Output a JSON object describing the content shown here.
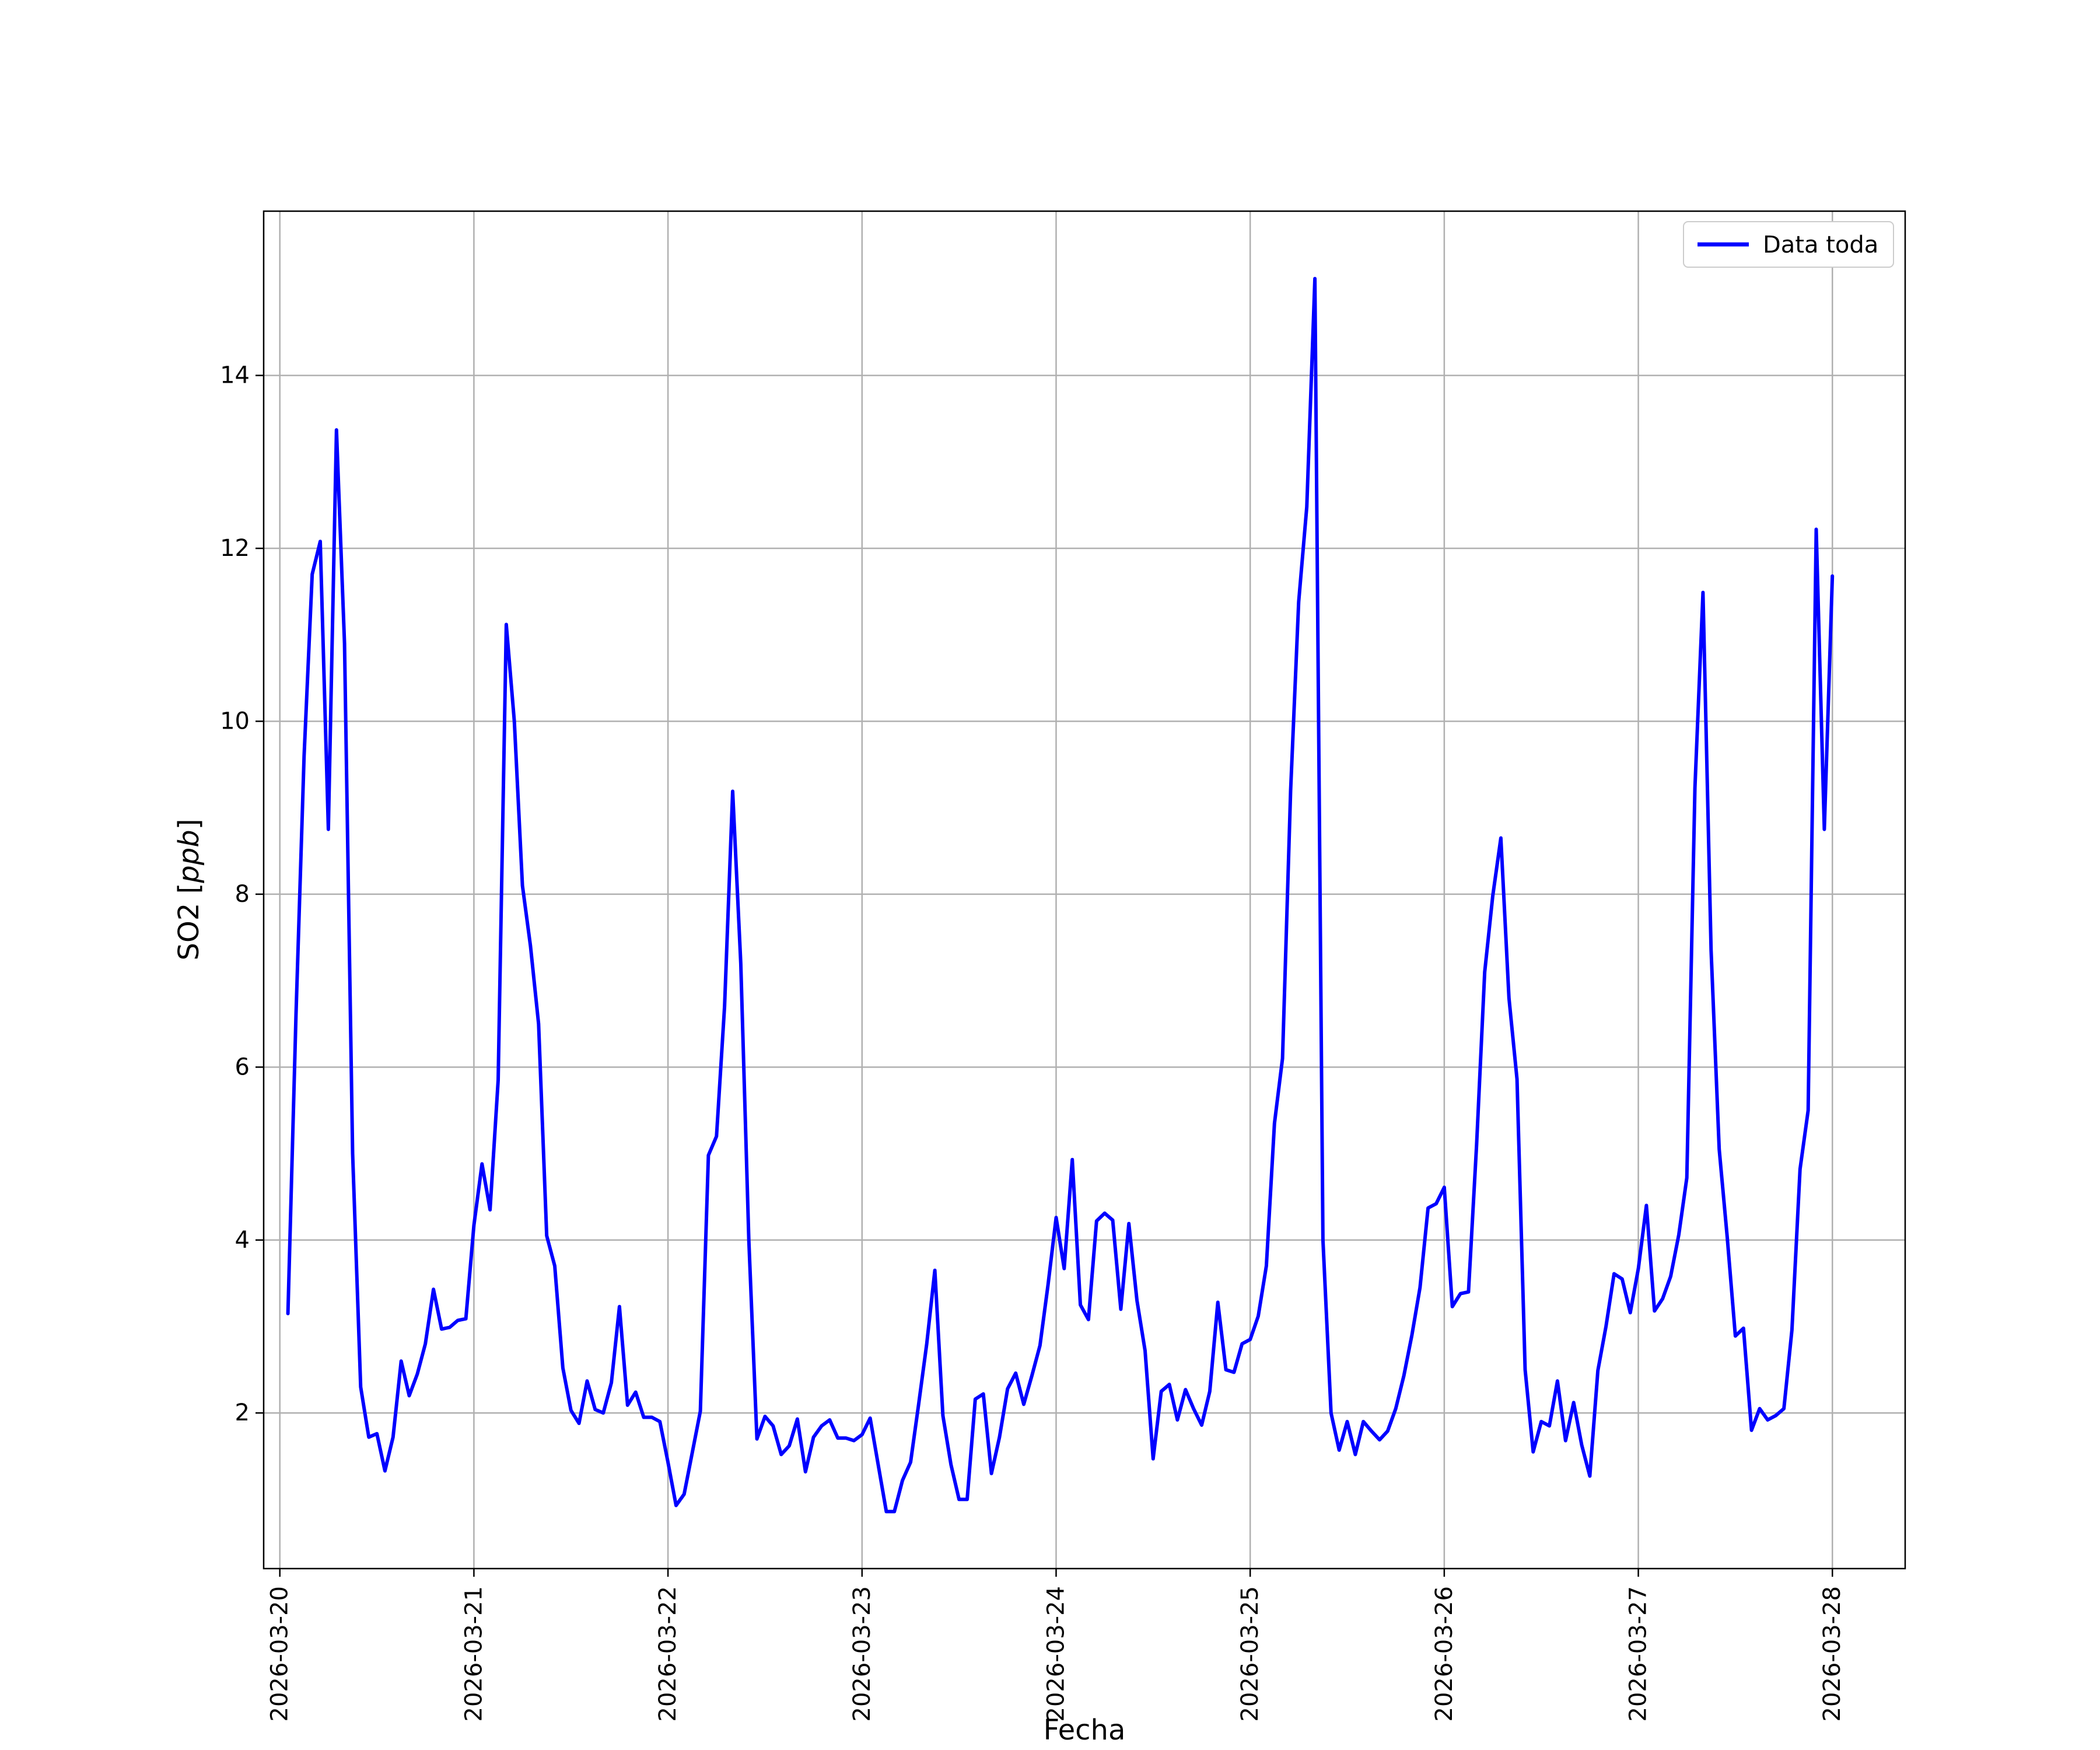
{
  "chart_data": {
    "type": "line",
    "xlabel": "Fecha",
    "ylabel_prefix": "SO2 [",
    "ylabel_unit": "ppb",
    "ylabel_suffix": "]",
    "x_range": [
      "2026-03-19 22:00",
      "2026-03-28 09:00"
    ],
    "ylim": [
      0.2,
      15.9
    ],
    "x_ticks": [
      "2026-03-20",
      "2026-03-21",
      "2026-03-22",
      "2026-03-23",
      "2026-03-24",
      "2026-03-25",
      "2026-03-26",
      "2026-03-27",
      "2026-03-28"
    ],
    "y_ticks": [
      2,
      4,
      6,
      8,
      10,
      12,
      14
    ],
    "grid": true,
    "legend_position": "top-right",
    "series": [
      {
        "name": "Data toda",
        "color": "#0000ff",
        "start": "2026-03-20 01:00",
        "step_hours": 1,
        "values": [
          3.15,
          6.6,
          9.6,
          11.7,
          12.08,
          8.75,
          13.37,
          10.9,
          5.0,
          2.3,
          1.72,
          1.76,
          1.33,
          1.72,
          2.6,
          2.2,
          2.45,
          2.8,
          3.43,
          2.97,
          2.99,
          3.07,
          3.09,
          4.17,
          4.88,
          4.35,
          5.85,
          11.12,
          10.0,
          8.1,
          7.4,
          6.5,
          4.05,
          3.7,
          2.52,
          2.03,
          1.88,
          2.37,
          2.04,
          2.0,
          2.35,
          3.23,
          2.09,
          2.24,
          1.95,
          1.95,
          1.9,
          1.43,
          0.93,
          1.06,
          1.54,
          2.02,
          4.98,
          5.2,
          6.7,
          9.19,
          7.2,
          4.0,
          1.7,
          1.96,
          1.85,
          1.52,
          1.62,
          1.93,
          1.32,
          1.72,
          1.85,
          1.92,
          1.71,
          1.71,
          1.68,
          1.75,
          1.94,
          1.4,
          0.86,
          0.86,
          1.22,
          1.43,
          2.1,
          2.8,
          3.65,
          1.97,
          1.4,
          1.0,
          1.0,
          2.16,
          2.22,
          1.3,
          1.72,
          2.28,
          2.46,
          2.1,
          2.43,
          2.78,
          3.48,
          4.26,
          3.67,
          4.93,
          3.25,
          3.08,
          4.22,
          4.31,
          4.23,
          3.2,
          4.19,
          3.3,
          2.72,
          1.47,
          2.25,
          2.33,
          1.92,
          2.27,
          2.05,
          1.86,
          2.25,
          3.28,
          2.5,
          2.47,
          2.8,
          2.85,
          3.12,
          3.7,
          5.35,
          6.1,
          9.2,
          11.38,
          12.48,
          15.12,
          4.0,
          2.0,
          1.57,
          1.9,
          1.52,
          1.9,
          1.79,
          1.69,
          1.79,
          2.05,
          2.43,
          2.9,
          3.45,
          4.37,
          4.42,
          4.61,
          3.23,
          3.38,
          3.4,
          5.1,
          7.1,
          7.98,
          8.65,
          6.8,
          5.86,
          2.5,
          1.55,
          1.9,
          1.85,
          2.37,
          1.68,
          2.12,
          1.63,
          1.27,
          2.49,
          3.0,
          3.61,
          3.55,
          3.16,
          3.67,
          4.4,
          3.18,
          3.32,
          3.58,
          4.06,
          4.72,
          9.23,
          11.49,
          7.35,
          5.05,
          4.03,
          2.89,
          2.98,
          1.8,
          2.05,
          1.92,
          1.97,
          2.05,
          2.96,
          4.82,
          5.5,
          12.22,
          8.75,
          11.68
        ]
      }
    ]
  }
}
